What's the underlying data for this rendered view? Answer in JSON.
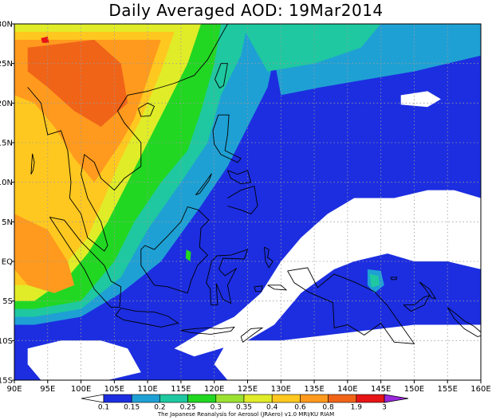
{
  "title": "Daily Averaged AOD: 19Mar2014",
  "credit": "The Japanese Reanalysis for Aerosol (JRAero) v1.0 MRI/KU RIAM",
  "map": {
    "lon_ticks": [
      "90E",
      "95E",
      "100E",
      "105E",
      "110E",
      "115E",
      "120E",
      "125E",
      "130E",
      "135E",
      "140E",
      "145E",
      "150E",
      "155E",
      "160E"
    ],
    "lat_ticks": [
      "30N",
      "25N",
      "20N",
      "15N",
      "10N",
      "5N",
      "EQ",
      "5S",
      "10S",
      "15S"
    ]
  },
  "colorbar": {
    "labels": [
      "0.1",
      "0.15",
      "0.2",
      "0.25",
      "0.3",
      "0.35",
      "0.4",
      "0.6",
      "0.8",
      "1.9",
      "3"
    ],
    "colors": [
      "#1c2ee0",
      "#1fa0d4",
      "#1fc8a0",
      "#22d722",
      "#9be132",
      "#e0ec28",
      "#ffc820",
      "#ff9a1e",
      "#f06418",
      "#e61414",
      "#9a28dc"
    ]
  },
  "palette": {
    "white": "#ffffff",
    "blue": "#1c2ee0",
    "cyan": "#1fa0d4",
    "teal": "#1fc8a0",
    "green": "#22d722",
    "lime": "#9be132",
    "yellow": "#e0ec28",
    "gold": "#ffc820",
    "orange": "#ff9a1e",
    "darkorange": "#f06418",
    "red": "#e61414"
  }
}
